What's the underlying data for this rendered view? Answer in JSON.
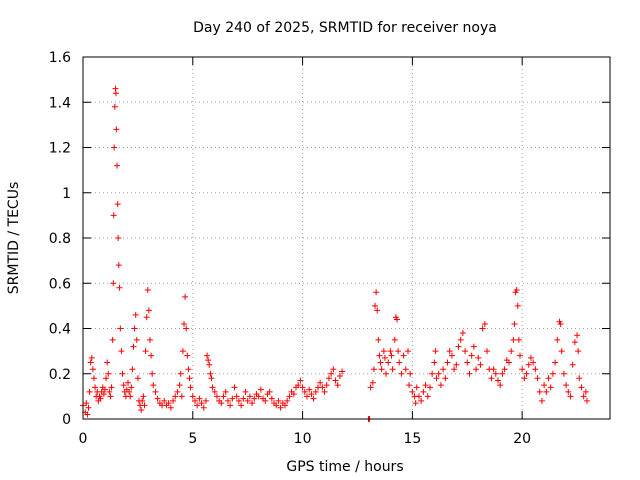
{
  "chart_data": {
    "type": "scatter",
    "title": "Day 240 of 2025, SRMTID for receiver noya",
    "xlabel": "GPS time / hours",
    "ylabel": "SRMTID / TECUs",
    "xlim": [
      0,
      24
    ],
    "ylim": [
      0,
      1.6
    ],
    "xticks": [
      0,
      5,
      10,
      15,
      20
    ],
    "yticks": [
      0,
      0.2,
      0.4,
      0.6,
      0.8,
      1,
      1.2,
      1.4,
      1.6
    ],
    "xtick_labels": [
      "0",
      "5",
      "10",
      "15",
      "20"
    ],
    "ytick_labels": [
      "0",
      "0.2",
      "0.4",
      "0.6",
      "0.8",
      "1",
      "1.2",
      "1.4",
      "1.6"
    ],
    "grid": true,
    "marker": "+",
    "marker_color": "#ff0000",
    "series": [
      {
        "name": "noya",
        "points": [
          [
            0.0,
            0.06
          ],
          [
            0.1,
            0.03
          ],
          [
            0.15,
            0.07
          ],
          [
            0.2,
            0.02
          ],
          [
            0.25,
            0.05
          ],
          [
            0.3,
            0.12
          ],
          [
            0.35,
            0.25
          ],
          [
            0.4,
            0.27
          ],
          [
            0.45,
            0.22
          ],
          [
            0.5,
            0.18
          ],
          [
            0.55,
            0.14
          ],
          [
            0.6,
            0.1
          ],
          [
            0.65,
            0.12
          ],
          [
            0.7,
            0.08
          ],
          [
            0.75,
            0.1
          ],
          [
            0.8,
            0.09
          ],
          [
            0.85,
            0.12
          ],
          [
            0.9,
            0.14
          ],
          [
            0.95,
            0.11
          ],
          [
            1.0,
            0.13
          ],
          [
            1.05,
            0.18
          ],
          [
            1.1,
            0.25
          ],
          [
            1.15,
            0.2
          ],
          [
            1.2,
            0.12
          ],
          [
            1.25,
            0.1
          ],
          [
            1.3,
            0.14
          ],
          [
            1.35,
            0.35
          ],
          [
            1.38,
            0.6
          ],
          [
            1.4,
            0.9
          ],
          [
            1.42,
            1.2
          ],
          [
            1.45,
            1.38
          ],
          [
            1.48,
            1.46
          ],
          [
            1.5,
            1.44
          ],
          [
            1.52,
            1.28
          ],
          [
            1.55,
            1.12
          ],
          [
            1.58,
            0.95
          ],
          [
            1.6,
            0.8
          ],
          [
            1.63,
            0.68
          ],
          [
            1.66,
            0.58
          ],
          [
            1.7,
            0.4
          ],
          [
            1.75,
            0.3
          ],
          [
            1.8,
            0.2
          ],
          [
            1.85,
            0.15
          ],
          [
            1.9,
            0.12
          ],
          [
            1.95,
            0.1
          ],
          [
            2.0,
            0.13
          ],
          [
            2.05,
            0.16
          ],
          [
            2.1,
            0.12
          ],
          [
            2.15,
            0.1
          ],
          [
            2.2,
            0.14
          ],
          [
            2.25,
            0.22
          ],
          [
            2.3,
            0.32
          ],
          [
            2.35,
            0.4
          ],
          [
            2.4,
            0.46
          ],
          [
            2.45,
            0.35
          ],
          [
            2.5,
            0.18
          ],
          [
            2.55,
            0.08
          ],
          [
            2.6,
            0.06
          ],
          [
            2.65,
            0.04
          ],
          [
            2.7,
            0.08
          ],
          [
            2.75,
            0.1
          ],
          [
            2.8,
            0.06
          ],
          [
            2.85,
            0.3
          ],
          [
            2.9,
            0.45
          ],
          [
            2.95,
            0.57
          ],
          [
            3.0,
            0.48
          ],
          [
            3.05,
            0.35
          ],
          [
            3.1,
            0.28
          ],
          [
            3.15,
            0.2
          ],
          [
            3.2,
            0.15
          ],
          [
            3.3,
            0.12
          ],
          [
            3.4,
            0.09
          ],
          [
            3.5,
            0.07
          ],
          [
            3.6,
            0.06
          ],
          [
            3.7,
            0.08
          ],
          [
            3.8,
            0.06
          ],
          [
            3.9,
            0.07
          ],
          [
            4.0,
            0.05
          ],
          [
            4.1,
            0.08
          ],
          [
            4.2,
            0.1
          ],
          [
            4.3,
            0.12
          ],
          [
            4.4,
            0.15
          ],
          [
            4.45,
            0.2
          ],
          [
            4.5,
            0.1
          ],
          [
            4.55,
            0.3
          ],
          [
            4.6,
            0.42
          ],
          [
            4.65,
            0.54
          ],
          [
            4.7,
            0.4
          ],
          [
            4.75,
            0.28
          ],
          [
            4.8,
            0.22
          ],
          [
            4.85,
            0.18
          ],
          [
            4.9,
            0.14
          ],
          [
            5.0,
            0.1
          ],
          [
            5.1,
            0.08
          ],
          [
            5.2,
            0.06
          ],
          [
            5.3,
            0.09
          ],
          [
            5.4,
            0.07
          ],
          [
            5.5,
            0.05
          ],
          [
            5.6,
            0.08
          ],
          [
            5.65,
            0.28
          ],
          [
            5.7,
            0.26
          ],
          [
            5.75,
            0.24
          ],
          [
            5.8,
            0.2
          ],
          [
            5.85,
            0.18
          ],
          [
            5.9,
            0.14
          ],
          [
            6.0,
            0.12
          ],
          [
            6.1,
            0.1
          ],
          [
            6.2,
            0.08
          ],
          [
            6.3,
            0.07
          ],
          [
            6.4,
            0.1
          ],
          [
            6.5,
            0.12
          ],
          [
            6.6,
            0.08
          ],
          [
            6.7,
            0.06
          ],
          [
            6.8,
            0.09
          ],
          [
            6.9,
            0.14
          ],
          [
            7.0,
            0.1
          ],
          [
            7.1,
            0.08
          ],
          [
            7.2,
            0.06
          ],
          [
            7.3,
            0.09
          ],
          [
            7.4,
            0.12
          ],
          [
            7.5,
            0.08
          ],
          [
            7.6,
            0.1
          ],
          [
            7.7,
            0.07
          ],
          [
            7.8,
            0.09
          ],
          [
            7.9,
            0.11
          ],
          [
            8.0,
            0.1
          ],
          [
            8.1,
            0.13
          ],
          [
            8.2,
            0.09
          ],
          [
            8.3,
            0.08
          ],
          [
            8.4,
            0.11
          ],
          [
            8.5,
            0.12
          ],
          [
            8.6,
            0.09
          ],
          [
            8.7,
            0.07
          ],
          [
            8.8,
            0.06
          ],
          [
            8.9,
            0.08
          ],
          [
            9.0,
            0.05
          ],
          [
            9.1,
            0.07
          ],
          [
            9.2,
            0.06
          ],
          [
            9.3,
            0.08
          ],
          [
            9.4,
            0.1
          ],
          [
            9.5,
            0.12
          ],
          [
            9.6,
            0.11
          ],
          [
            9.7,
            0.14
          ],
          [
            9.8,
            0.15
          ],
          [
            9.9,
            0.17
          ],
          [
            10.0,
            0.14
          ],
          [
            10.1,
            0.12
          ],
          [
            10.2,
            0.1
          ],
          [
            10.3,
            0.13
          ],
          [
            10.4,
            0.11
          ],
          [
            10.5,
            0.09
          ],
          [
            10.6,
            0.12
          ],
          [
            10.7,
            0.14
          ],
          [
            10.8,
            0.16
          ],
          [
            10.9,
            0.14
          ],
          [
            11.0,
            0.12
          ],
          [
            11.1,
            0.15
          ],
          [
            11.2,
            0.18
          ],
          [
            11.3,
            0.2
          ],
          [
            11.4,
            0.22
          ],
          [
            11.5,
            0.17
          ],
          [
            11.6,
            0.15
          ],
          [
            11.7,
            0.19
          ],
          [
            11.8,
            0.21
          ],
          [
            13.0,
            0.0
          ],
          [
            13.05,
            0.0
          ],
          [
            13.1,
            0.14
          ],
          [
            13.2,
            0.16
          ],
          [
            13.25,
            0.22
          ],
          [
            13.3,
            0.5
          ],
          [
            13.35,
            0.56
          ],
          [
            13.4,
            0.48
          ],
          [
            13.45,
            0.35
          ],
          [
            13.5,
            0.28
          ],
          [
            13.55,
            0.25
          ],
          [
            13.6,
            0.22
          ],
          [
            13.7,
            0.3
          ],
          [
            13.75,
            0.27
          ],
          [
            13.8,
            0.2
          ],
          [
            13.9,
            0.25
          ],
          [
            14.0,
            0.3
          ],
          [
            14.05,
            0.28
          ],
          [
            14.1,
            0.22
          ],
          [
            14.2,
            0.35
          ],
          [
            14.25,
            0.45
          ],
          [
            14.3,
            0.44
          ],
          [
            14.35,
            0.3
          ],
          [
            14.4,
            0.25
          ],
          [
            14.5,
            0.2
          ],
          [
            14.6,
            0.28
          ],
          [
            14.7,
            0.22
          ],
          [
            14.8,
            0.3
          ],
          [
            14.85,
            0.15
          ],
          [
            14.9,
            0.2
          ],
          [
            15.0,
            0.12
          ],
          [
            15.1,
            0.1
          ],
          [
            15.15,
            0.07
          ],
          [
            15.2,
            0.14
          ],
          [
            15.3,
            0.1
          ],
          [
            15.4,
            0.08
          ],
          [
            15.5,
            0.12
          ],
          [
            15.6,
            0.15
          ],
          [
            15.7,
            0.1
          ],
          [
            15.8,
            0.14
          ],
          [
            15.9,
            0.2
          ],
          [
            16.0,
            0.25
          ],
          [
            16.05,
            0.3
          ],
          [
            16.1,
            0.18
          ],
          [
            16.2,
            0.2
          ],
          [
            16.3,
            0.15
          ],
          [
            16.4,
            0.22
          ],
          [
            16.5,
            0.18
          ],
          [
            16.6,
            0.25
          ],
          [
            16.7,
            0.3
          ],
          [
            16.8,
            0.28
          ],
          [
            16.9,
            0.22
          ],
          [
            17.0,
            0.24
          ],
          [
            17.1,
            0.32
          ],
          [
            17.2,
            0.35
          ],
          [
            17.3,
            0.38
          ],
          [
            17.4,
            0.3
          ],
          [
            17.5,
            0.25
          ],
          [
            17.6,
            0.2
          ],
          [
            17.7,
            0.28
          ],
          [
            17.8,
            0.32
          ],
          [
            17.9,
            0.22
          ],
          [
            18.0,
            0.27
          ],
          [
            18.1,
            0.24
          ],
          [
            18.2,
            0.4
          ],
          [
            18.3,
            0.42
          ],
          [
            18.4,
            0.3
          ],
          [
            18.5,
            0.22
          ],
          [
            18.6,
            0.18
          ],
          [
            18.7,
            0.22
          ],
          [
            18.8,
            0.2
          ],
          [
            18.9,
            0.17
          ],
          [
            19.0,
            0.15
          ],
          [
            19.1,
            0.2
          ],
          [
            19.2,
            0.22
          ],
          [
            19.3,
            0.26
          ],
          [
            19.4,
            0.25
          ],
          [
            19.5,
            0.3
          ],
          [
            19.6,
            0.35
          ],
          [
            19.65,
            0.42
          ],
          [
            19.7,
            0.56
          ],
          [
            19.75,
            0.57
          ],
          [
            19.8,
            0.5
          ],
          [
            19.85,
            0.35
          ],
          [
            19.9,
            0.28
          ],
          [
            20.0,
            0.22
          ],
          [
            20.1,
            0.18
          ],
          [
            20.2,
            0.2
          ],
          [
            20.3,
            0.24
          ],
          [
            20.4,
            0.27
          ],
          [
            20.5,
            0.25
          ],
          [
            20.6,
            0.22
          ],
          [
            20.7,
            0.18
          ],
          [
            20.8,
            0.12
          ],
          [
            20.9,
            0.08
          ],
          [
            21.0,
            0.15
          ],
          [
            21.1,
            0.12
          ],
          [
            21.2,
            0.18
          ],
          [
            21.3,
            0.14
          ],
          [
            21.4,
            0.2
          ],
          [
            21.5,
            0.25
          ],
          [
            21.6,
            0.35
          ],
          [
            21.7,
            0.43
          ],
          [
            21.75,
            0.42
          ],
          [
            21.8,
            0.3
          ],
          [
            21.9,
            0.2
          ],
          [
            22.0,
            0.15
          ],
          [
            22.1,
            0.12
          ],
          [
            22.2,
            0.1
          ],
          [
            22.3,
            0.24
          ],
          [
            22.4,
            0.34
          ],
          [
            22.5,
            0.37
          ],
          [
            22.55,
            0.3
          ],
          [
            22.6,
            0.18
          ],
          [
            22.7,
            0.14
          ],
          [
            22.8,
            0.1
          ],
          [
            22.9,
            0.12
          ],
          [
            22.95,
            0.08
          ]
        ]
      }
    ]
  }
}
